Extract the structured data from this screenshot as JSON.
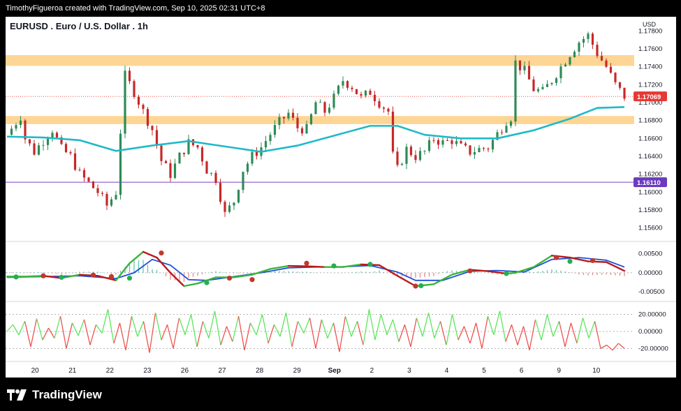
{
  "header": {
    "attribution": "TimothyFigueroa created with TradingView.com, Sep 10, 2025 02:31 UTC+8"
  },
  "footer": {
    "brand": "TradingView"
  },
  "chart_data": {
    "type": "candlestick",
    "title": "EURUSD . Euro / U.S. Dollar . 1h",
    "currency": "USD",
    "x_ticks": [
      "20",
      "21",
      "22",
      "23",
      "26",
      "27",
      "28",
      "29",
      "Sep",
      "2",
      "3",
      "4",
      "5",
      "6",
      "9",
      "10"
    ],
    "price_ticks": [
      "1.17800",
      "1.17600",
      "1.17400",
      "1.17200",
      "1.17000",
      "1.16800",
      "1.16600",
      "1.16400",
      "1.16200",
      "1.16000",
      "1.15800",
      "1.15600"
    ],
    "price_range": [
      1.1548,
      1.1792
    ],
    "last_price_label": "1.17069",
    "last_price": 1.17069,
    "level_label": "1.16110",
    "level_price": 1.1611,
    "resistance_zones": [
      [
        1.1741,
        1.1753
      ],
      [
        1.1676,
        1.1685
      ]
    ],
    "close_path": [
      [
        0,
        1.1664
      ],
      [
        1,
        1.1678
      ],
      [
        1.5,
        1.1685
      ],
      [
        2,
        1.166
      ],
      [
        3,
        1.1645
      ],
      [
        4,
        1.1658
      ],
      [
        5,
        1.167
      ],
      [
        6,
        1.1648
      ],
      [
        7,
        1.164
      ],
      [
        8,
        1.162
      ],
      [
        9,
        1.161
      ],
      [
        10,
        1.16
      ],
      [
        11,
        1.1585
      ],
      [
        12,
        1.16
      ],
      [
        12.5,
        1.1668
      ],
      [
        13,
        1.173
      ],
      [
        14,
        1.1712
      ],
      [
        15,
        1.169
      ],
      [
        16,
        1.167
      ],
      [
        17,
        1.1635
      ],
      [
        18,
        1.162
      ],
      [
        19,
        1.164
      ],
      [
        20,
        1.1655
      ],
      [
        21,
        1.165
      ],
      [
        22,
        1.1625
      ],
      [
        23,
        1.1615
      ],
      [
        24,
        1.1575
      ],
      [
        25,
        1.159
      ],
      [
        26,
        1.1625
      ],
      [
        27,
        1.164
      ],
      [
        28,
        1.165
      ],
      [
        29,
        1.1665
      ],
      [
        30,
        1.1678
      ],
      [
        31,
        1.1688
      ],
      [
        32,
        1.1672
      ],
      [
        33,
        1.167
      ],
      [
        34,
        1.17
      ],
      [
        35,
        1.169
      ],
      [
        36,
        1.1705
      ],
      [
        37,
        1.1725
      ],
      [
        38,
        1.1718
      ],
      [
        39,
        1.1705
      ],
      [
        40,
        1.1712
      ],
      [
        41,
        1.17
      ],
      [
        42,
        1.169
      ],
      [
        42.2,
        1.165
      ],
      [
        43,
        1.1625
      ],
      [
        44,
        1.1648
      ],
      [
        45,
        1.164
      ],
      [
        46,
        1.1645
      ],
      [
        47,
        1.166
      ],
      [
        48,
        1.1655
      ],
      [
        49,
        1.1658
      ],
      [
        50,
        1.165
      ],
      [
        51,
        1.1645
      ],
      [
        52,
        1.1648
      ],
      [
        53,
        1.165
      ],
      [
        54,
        1.1665
      ],
      [
        55,
        1.168
      ],
      [
        55.8,
        1.1686
      ],
      [
        56,
        1.1745
      ],
      [
        57,
        1.1735
      ],
      [
        58,
        1.1715
      ],
      [
        59,
        1.1712
      ],
      [
        60,
        1.1725
      ],
      [
        61,
        1.174
      ],
      [
        62,
        1.1755
      ],
      [
        63,
        1.1768
      ],
      [
        64,
        1.1775
      ],
      [
        65,
        1.1755
      ],
      [
        66,
        1.174
      ],
      [
        67,
        1.172
      ],
      [
        68,
        1.1707
      ]
    ],
    "ema": [
      [
        0,
        1.1662
      ],
      [
        4,
        1.1661
      ],
      [
        8,
        1.1658
      ],
      [
        12,
        1.1646
      ],
      [
        16,
        1.1652
      ],
      [
        20,
        1.1657
      ],
      [
        24,
        1.1651
      ],
      [
        28,
        1.1645
      ],
      [
        32,
        1.1652
      ],
      [
        36,
        1.1663
      ],
      [
        40,
        1.1674
      ],
      [
        43,
        1.1674
      ],
      [
        46,
        1.1664
      ],
      [
        50,
        1.166
      ],
      [
        54,
        1.166
      ],
      [
        58,
        1.1669
      ],
      [
        62,
        1.1682
      ],
      [
        65,
        1.1694
      ],
      [
        68,
        1.1695
      ]
    ],
    "macd": {
      "ticks": [
        "0.00500",
        "0.00000",
        "-0.00500"
      ],
      "range": [
        -0.0068,
        0.0075
      ],
      "macd_line": [
        [
          0,
          -0.001
        ],
        [
          2,
          -0.001
        ],
        [
          4,
          -0.0008
        ],
        [
          6,
          -0.0014
        ],
        [
          8,
          -0.0005
        ],
        [
          10,
          -0.0008
        ],
        [
          12,
          -0.002
        ],
        [
          13.5,
          0.0025
        ],
        [
          15,
          0.0055
        ],
        [
          16.5,
          0.004
        ],
        [
          18,
          0.0
        ],
        [
          19.5,
          -0.0035
        ],
        [
          21,
          -0.0028
        ],
        [
          23,
          -0.0012
        ],
        [
          25,
          -0.0012
        ],
        [
          27,
          -0.0005
        ],
        [
          29,
          0.001
        ],
        [
          31,
          0.0018
        ],
        [
          33,
          0.0017
        ],
        [
          35,
          0.0015
        ],
        [
          37,
          0.0015
        ],
        [
          39,
          0.0022
        ],
        [
          41,
          0.002
        ],
        [
          43,
          -0.0008
        ],
        [
          45,
          -0.0035
        ],
        [
          47,
          -0.003
        ],
        [
          49,
          -0.0005
        ],
        [
          51,
          0.0008
        ],
        [
          53,
          0.0004
        ],
        [
          55,
          -0.0002
        ],
        [
          56,
          0.0
        ],
        [
          58,
          0.0015
        ],
        [
          60,
          0.0045
        ],
        [
          62,
          0.004
        ],
        [
          64,
          0.003
        ],
        [
          66,
          0.0028
        ],
        [
          68,
          0.0005
        ]
      ],
      "signal_line": [
        [
          0,
          -0.0012
        ],
        [
          4,
          -0.001
        ],
        [
          8,
          -0.0008
        ],
        [
          12,
          -0.0015
        ],
        [
          14,
          0.0
        ],
        [
          16,
          0.0035
        ],
        [
          18,
          0.002
        ],
        [
          20,
          -0.0018
        ],
        [
          22,
          -0.002
        ],
        [
          25,
          -0.001
        ],
        [
          28,
          0.0
        ],
        [
          31,
          0.0013
        ],
        [
          34,
          0.0015
        ],
        [
          37,
          0.0016
        ],
        [
          40,
          0.0019
        ],
        [
          43,
          0.0002
        ],
        [
          45,
          -0.002
        ],
        [
          48,
          -0.002
        ],
        [
          51,
          0.0004
        ],
        [
          54,
          0.0006
        ],
        [
          57,
          0.0002
        ],
        [
          60,
          0.0035
        ],
        [
          63,
          0.004
        ],
        [
          66,
          0.0033
        ],
        [
          68,
          0.0015
        ]
      ],
      "cross_dots": [
        [
          1,
          -0.0011,
          "#22b14c"
        ],
        [
          4,
          -0.0008,
          "#c0392b"
        ],
        [
          6,
          -0.0012,
          "#22b14c"
        ],
        [
          9.5,
          -0.0006,
          "#c0392b"
        ],
        [
          11.5,
          -0.001,
          "#c0392b"
        ],
        [
          13.5,
          -0.0014,
          "#22b14c"
        ],
        [
          17,
          0.0052,
          "#c0392b"
        ],
        [
          22,
          -0.0026,
          "#22b14c"
        ],
        [
          24.5,
          -0.0014,
          "#c0392b"
        ],
        [
          27,
          -0.0018,
          "#c0392b"
        ],
        [
          33,
          0.0025,
          "#c0392b"
        ],
        [
          36,
          0.0018,
          "#22b14c"
        ],
        [
          40,
          0.0022,
          "#22b14c"
        ],
        [
          45,
          -0.0035,
          "#c0392b"
        ],
        [
          45.6,
          -0.0034,
          "#22b14c"
        ],
        [
          51,
          0.0005,
          "#c0392b"
        ],
        [
          55,
          -0.0002,
          "#22b14c"
        ],
        [
          60.5,
          0.004,
          "#c0392b"
        ],
        [
          62,
          0.003,
          "#22b14c"
        ],
        [
          64.5,
          0.0032,
          "#c0392b"
        ]
      ]
    },
    "oscillator": {
      "ticks": [
        "20.00000",
        "0.00000",
        "-20.00000"
      ],
      "range": [
        -32,
        32
      ],
      "values": [
        0,
        8,
        -4,
        12,
        -18,
        15,
        -10,
        4,
        -8,
        18,
        -20,
        10,
        -5,
        14,
        -16,
        8,
        -2,
        26,
        -14,
        10,
        -22,
        18,
        -6,
        12,
        -25,
        22,
        -10,
        8,
        -20,
        16,
        -4,
        20,
        -18,
        12,
        -8,
        24,
        -16,
        6,
        -12,
        18,
        -22,
        10,
        -4,
        20,
        -14,
        8,
        -6,
        22,
        -18,
        12,
        -2,
        16,
        -20,
        14,
        -8,
        10,
        -24,
        18,
        -6,
        12,
        -16,
        26,
        -10,
        20,
        -4,
        14,
        -12,
        8,
        -18,
        16,
        -6,
        22,
        -8,
        12,
        -16,
        20,
        -10,
        6,
        -14,
        10,
        -20,
        18,
        -4,
        24,
        -12,
        8,
        -16,
        6,
        -22,
        14,
        -10,
        20,
        -6,
        12,
        -18,
        10,
        -14,
        16,
        -8,
        12,
        -20,
        -16,
        -22,
        -14,
        -20
      ]
    }
  }
}
